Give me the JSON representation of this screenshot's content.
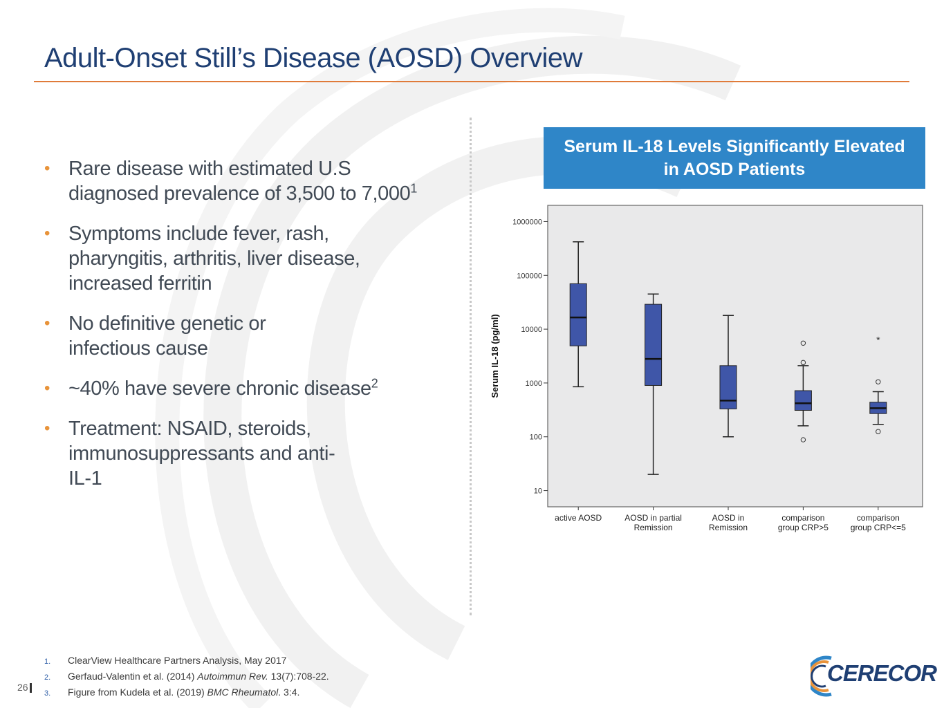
{
  "slide": {
    "title": "Adult-Onset Still’s Disease (AOSD) Overview",
    "page_number": "26"
  },
  "bullets": [
    {
      "text": "Rare disease with estimated U.S diagnosed prevalence of 3,500 to 7,000",
      "sup": "1"
    },
    {
      "text": "Symptoms include fever, rash, pharyngitis, arthritis, liver disease, increased ferritin",
      "sup": ""
    },
    {
      "text": "No definitive genetic or infectious cause",
      "sup": ""
    },
    {
      "text": "~40% have severe chronic disease",
      "sup": "2"
    },
    {
      "text": "Treatment: NSAID, steroids, immunosuppressants and anti-IL-1",
      "sup": ""
    }
  ],
  "chart_banner": "Serum IL-18 Levels Significantly Elevated in AOSD Patients",
  "footnotes": [
    {
      "num": "1.",
      "text": "ClearView Healthcare Partners Analysis, May 2017",
      "italic": "",
      "suffix": ""
    },
    {
      "num": "2.",
      "text": "Gerfaud-Valentin et al. (2014) ",
      "italic": "Autoimmun Rev.",
      "suffix": " 13(7):708-22."
    },
    {
      "num": "3.",
      "text": "Figure from Kudela et al. (2019) ",
      "italic": "BMC Rheumatol",
      "suffix": ". 3:4."
    }
  ],
  "logo": {
    "text": "CERECOR",
    "colors": [
      "#1f3f73",
      "#e8933a",
      "#2f86c8"
    ]
  },
  "colors": {
    "title": "#1f3f73",
    "accent": "#e07b3a",
    "bullet": "#e8933a",
    "banner": "#2f86c8",
    "box": "#3f56a8"
  },
  "chart_data": {
    "type": "boxplot",
    "ylabel": "Serum IL-18 (pg/ml)",
    "yscale": "log",
    "ylim": [
      5,
      2000000
    ],
    "yticks": [
      10,
      100,
      1000,
      10000,
      100000,
      1000000
    ],
    "ytick_labels": [
      "10",
      "100",
      "1000",
      "10000",
      "100000",
      "1000000"
    ],
    "categories": [
      {
        "label1": "active AOSD",
        "label2": "",
        "min": 850,
        "q1": 4900,
        "median": 16500,
        "q3": 70000,
        "max": 420000,
        "outliers": [],
        "extremes": []
      },
      {
        "label1": "AOSD in partial",
        "label2": "Remission",
        "min": 20,
        "q1": 900,
        "median": 2800,
        "q3": 29000,
        "max": 45000,
        "outliers": [],
        "extremes": []
      },
      {
        "label1": "AOSD in",
        "label2": "Remission",
        "min": 100,
        "q1": 330,
        "median": 470,
        "q3": 2100,
        "max": 18000,
        "outliers": [],
        "extremes": []
      },
      {
        "label1": "comparison",
        "label2": "group CRP>5",
        "min": 160,
        "q1": 310,
        "median": 420,
        "q3": 720,
        "max": 2100,
        "outliers": [
          88,
          2400,
          5500
        ],
        "extremes": []
      },
      {
        "label1": "comparison",
        "label2": "group CRP<=5",
        "min": 170,
        "q1": 270,
        "median": 340,
        "q3": 440,
        "max": 690,
        "outliers": [
          125,
          1050
        ],
        "extremes": [
          6500
        ]
      }
    ]
  }
}
